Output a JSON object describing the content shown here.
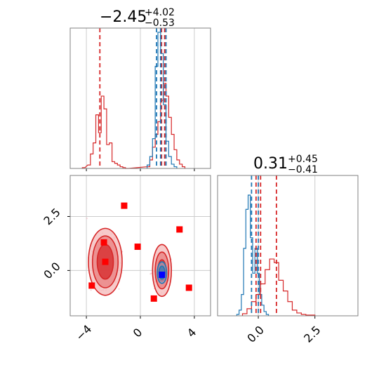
{
  "colors": {
    "red": "#d62728",
    "blue": "#1f77b4",
    "marker_red": "#ff0000",
    "marker_blue": "#0000ff",
    "grid": "#cccccc",
    "frame": "#808080",
    "contour_fill_light": "#f4b8b8",
    "contour_fill_mid": "#e87f7f",
    "contour_fill_dark": "#d62728",
    "scatter_red": "#f2bcc4",
    "scatter_blue": "#9fb8d8"
  },
  "panels": {
    "top_left": {
      "title_main": "−2.45",
      "title_sup": "+4.02",
      "title_sub": "−0.53"
    },
    "bottom_right": {
      "title_main": "0.31",
      "title_sup": "+0.45",
      "title_sub": "−0.41"
    }
  },
  "chart_data": [
    {
      "type": "histogram",
      "panel": "top-left",
      "x_range": [
        -5.2,
        5.2
      ],
      "xticks": [
        -4,
        0,
        4
      ],
      "grid": true,
      "series": [
        {
          "color": "red",
          "bins_x": [
            -4.2,
            -3.8,
            -3.6,
            -3.4,
            -3.2,
            -3.0,
            -2.8,
            -2.6,
            -2.4,
            -2.2,
            -2.0,
            -1.8,
            -1.6,
            -1.4,
            -1.2,
            -1.0,
            0.6,
            0.8,
            1.0,
            1.2,
            1.4,
            1.6,
            1.8,
            2.0,
            2.2,
            2.4,
            2.6,
            2.8,
            3.0,
            3.2
          ],
          "counts": [
            1,
            4,
            17,
            30,
            63,
            42,
            85,
            70,
            28,
            30,
            8,
            6,
            4,
            2,
            1,
            0,
            2,
            10,
            25,
            40,
            55,
            80,
            100,
            85,
            60,
            40,
            22,
            10,
            5,
            2
          ]
        },
        {
          "color": "blue",
          "bins_x": [
            0.6,
            0.8,
            1.0,
            1.2,
            1.4,
            1.6,
            1.8,
            2.0,
            2.2,
            2.4,
            2.6
          ],
          "counts": [
            4,
            14,
            35,
            120,
            160,
            135,
            75,
            32,
            14,
            5,
            2
          ]
        }
      ],
      "vlines": [
        {
          "color": "red",
          "x": -3.0
        },
        {
          "color": "red",
          "x": 1.57
        },
        {
          "color": "red",
          "x": 1.8
        },
        {
          "color": "blue",
          "x": 1.2
        },
        {
          "color": "blue",
          "x": 1.5
        },
        {
          "color": "blue",
          "x": 1.9
        }
      ]
    },
    {
      "type": "histogram",
      "panel": "bottom-right",
      "x_range": [
        -1.8,
        4.4
      ],
      "xticks": [
        0.0,
        2.5
      ],
      "xtick_labels": [
        "0.0",
        "2.5"
      ],
      "grid": true,
      "series": [
        {
          "color": "blue",
          "bins_x": [
            -0.9,
            -0.8,
            -0.7,
            -0.6,
            -0.5,
            -0.4,
            -0.3,
            -0.2,
            -0.1,
            0.0,
            0.1,
            0.2,
            0.3,
            0.4
          ],
          "counts": [
            2,
            8,
            30,
            95,
            150,
            170,
            110,
            60,
            95,
            60,
            30,
            15,
            6,
            2
          ]
        },
        {
          "color": "red",
          "bins_x": [
            -0.6,
            -0.4,
            -0.2,
            0.0,
            0.2,
            0.4,
            0.6,
            0.8,
            1.0,
            1.2,
            1.4,
            1.6,
            1.8,
            2.0,
            2.2,
            2.4
          ],
          "counts": [
            3,
            10,
            20,
            30,
            45,
            65,
            80,
            75,
            50,
            35,
            20,
            8,
            4,
            2,
            1,
            1
          ]
        }
      ],
      "vlines": [
        {
          "color": "blue",
          "x": -0.3
        },
        {
          "color": "blue",
          "x": 0.0
        },
        {
          "color": "red",
          "x": -0.1
        },
        {
          "color": "red",
          "x": 0.1
        },
        {
          "color": "red",
          "x": 0.8
        }
      ]
    },
    {
      "type": "scatter",
      "panel": "bottom-left",
      "x_range": [
        -5.2,
        5.2
      ],
      "y_range": [
        -2.1,
        4.4
      ],
      "xticks": [
        -4,
        0,
        4
      ],
      "yticks": [
        0.0,
        2.5
      ],
      "ytick_labels": [
        "0.0",
        "2.5"
      ],
      "grid": true,
      "red_square_markers": [
        [
          -1.2,
          3.0
        ],
        [
          -2.7,
          1.3
        ],
        [
          -0.2,
          1.1
        ],
        [
          2.9,
          1.9
        ],
        [
          -2.6,
          0.4
        ],
        [
          -3.6,
          -0.7
        ],
        [
          3.6,
          -0.8
        ],
        [
          1.0,
          -1.3
        ]
      ],
      "blue_square_marker": [
        1.6,
        -0.2
      ],
      "contour_centers": [
        {
          "color": "red",
          "x": -2.6,
          "y": 0.4,
          "levels_rx": [
            1.25,
            0.95,
            0.6
          ],
          "levels_ry": [
            1.55,
            1.2,
            0.8
          ]
        },
        {
          "color": "red",
          "x": 1.6,
          "y": 0.0,
          "levels_rx": [
            0.7,
            0.5,
            0.3
          ],
          "levels_ry": [
            1.2,
            0.85,
            0.5
          ]
        },
        {
          "color": "blue",
          "x": 1.6,
          "y": -0.1,
          "levels_rx": [
            0.35,
            0.22
          ],
          "levels_ry": [
            0.5,
            0.3
          ]
        }
      ]
    }
  ]
}
